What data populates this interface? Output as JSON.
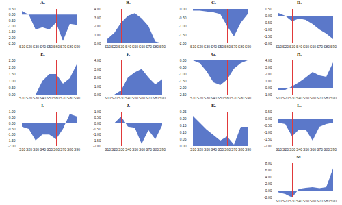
{
  "chart_data": [
    {
      "type": "area",
      "title": "A.",
      "categories": [
        "S10",
        "S20",
        "S30",
        "S40",
        "S50",
        "S60",
        "S70",
        "S80",
        "S90"
      ],
      "values": [
        0.3,
        0,
        -1.3,
        -1.1,
        -1.3,
        -0.7,
        -2.3,
        -0.8,
        -0.9
      ],
      "color": "#5b78c9",
      "ylim": [
        -2.5,
        0.5
      ],
      "yticks": [
        {
          "value": -2.5,
          "label": "-2.50"
        },
        {
          "value": -2,
          "label": "-2.00"
        },
        {
          "value": -1.5,
          "label": "-1.50"
        },
        {
          "value": -1,
          "label": "-1.00"
        },
        {
          "value": -0.5,
          "label": "-0.50"
        },
        {
          "value": 0,
          "label": "0.00"
        },
        {
          "value": 0.5,
          "label": "0.50"
        }
      ],
      "reference_lines": {
        "x": [
          "S30",
          "S60"
        ],
        "color": "#e03a3a"
      }
    },
    {
      "type": "area",
      "title": "B.",
      "categories": [
        "S10",
        "S20",
        "S30",
        "S40",
        "S50",
        "S60",
        "S70",
        "S80",
        "S90"
      ],
      "values": [
        0.5,
        1.2,
        2.4,
        3.2,
        3.5,
        2.9,
        2.0,
        0.2,
        0
      ],
      "color": "#5b78c9",
      "ylim": [
        0,
        4
      ],
      "yticks": [
        {
          "value": 0,
          "label": "0.00"
        },
        {
          "value": 1,
          "label": "1.00"
        },
        {
          "value": 2,
          "label": "2.00"
        },
        {
          "value": 3,
          "label": "3.00"
        },
        {
          "value": 4,
          "label": "4.00"
        }
      ],
      "reference_lines": {
        "x": [
          "S30",
          "S60"
        ],
        "color": "#e03a3a"
      }
    },
    {
      "type": "area",
      "title": "C.",
      "categories": [
        "S10",
        "S20",
        "S30",
        "S40",
        "S50",
        "S60",
        "S70",
        "S80",
        "S90"
      ],
      "values": [
        -0.1,
        -0.1,
        -0.15,
        -0.2,
        -0.3,
        -1.0,
        -1.6,
        -0.8,
        -0.3
      ],
      "color": "#5b78c9",
      "ylim": [
        -2,
        0
      ],
      "yticks": [
        {
          "value": -2,
          "label": "-2.00"
        },
        {
          "value": -1.5,
          "label": "-1.50"
        },
        {
          "value": -1,
          "label": "-1.00"
        },
        {
          "value": -0.5,
          "label": "-0.50"
        },
        {
          "value": 0,
          "label": "0.00"
        }
      ],
      "reference_lines": {
        "x": [
          "S30",
          "S60"
        ],
        "color": "#e03a3a"
      }
    },
    {
      "type": "area",
      "title": "D.",
      "categories": [
        "S10",
        "S20",
        "S30",
        "S40",
        "S50",
        "S60",
        "S70",
        "S80",
        "S90"
      ],
      "values": [
        0.2,
        0,
        -0.4,
        -0.2,
        -0.3,
        -0.6,
        -1.0,
        -1.3,
        -1.7
      ],
      "color": "#5b78c9",
      "ylim": [
        -2,
        0.5
      ],
      "yticks": [
        {
          "value": -2,
          "label": "-2.00"
        },
        {
          "value": -1.5,
          "label": "-1.50"
        },
        {
          "value": -1,
          "label": "-1.00"
        },
        {
          "value": -0.5,
          "label": "-0.50"
        },
        {
          "value": 0,
          "label": "0.00"
        },
        {
          "value": 0.5,
          "label": "0.50"
        }
      ],
      "reference_lines": {
        "x": [
          "S30",
          "S60"
        ],
        "color": "#e03a3a"
      }
    },
    {
      "type": "area",
      "title": "E.",
      "categories": [
        "S10",
        "S20",
        "S30",
        "S40",
        "S50",
        "S60",
        "S70",
        "S80",
        "S90"
      ],
      "values": [
        0,
        0,
        0,
        1.0,
        1.5,
        1.5,
        0.8,
        1.2,
        2.2
      ],
      "color": "#5b78c9",
      "ylim": [
        0,
        2.5
      ],
      "yticks": [
        {
          "value": 0,
          "label": "0.00"
        },
        {
          "value": 0.5,
          "label": "0.50"
        },
        {
          "value": 1,
          "label": "1.00"
        },
        {
          "value": 1.5,
          "label": "1.50"
        },
        {
          "value": 2,
          "label": "2.00"
        },
        {
          "value": 2.5,
          "label": "2.50"
        }
      ],
      "reference_lines": {
        "x": [
          "S30",
          "S60"
        ],
        "color": "#e03a3a"
      }
    },
    {
      "type": "area",
      "title": "F.",
      "categories": [
        "S10",
        "S20",
        "S30",
        "S40",
        "S50",
        "S60",
        "S70",
        "S80",
        "S90"
      ],
      "values": [
        0,
        0,
        0.5,
        2.0,
        2.6,
        3.0,
        2.0,
        1.2,
        1.8
      ],
      "color": "#5b78c9",
      "ylim": [
        0,
        4
      ],
      "yticks": [
        {
          "value": 0,
          "label": "0.00"
        },
        {
          "value": 1,
          "label": "1.00"
        },
        {
          "value": 2,
          "label": "2.00"
        },
        {
          "value": 3,
          "label": "3.00"
        },
        {
          "value": 4,
          "label": "4.00"
        }
      ],
      "reference_lines": {
        "x": [
          "S30",
          "S60"
        ],
        "color": "#e03a3a"
      }
    },
    {
      "type": "area",
      "title": "G.",
      "categories": [
        "S10",
        "S20",
        "S30",
        "S40",
        "S50",
        "S60",
        "S70",
        "S80",
        "S90"
      ],
      "values": [
        0,
        -0.2,
        -0.8,
        -1.6,
        -1.8,
        -1.4,
        -0.6,
        -0.2,
        0
      ],
      "color": "#5b78c9",
      "ylim": [
        -2.5,
        0
      ],
      "yticks": [
        {
          "value": -2.5,
          "label": "-2.50"
        },
        {
          "value": -2,
          "label": "-2.00"
        },
        {
          "value": -1.5,
          "label": "-1.50"
        },
        {
          "value": -1,
          "label": "-1.00"
        },
        {
          "value": -0.5,
          "label": "-0.50"
        },
        {
          "value": 0,
          "label": "0.00"
        }
      ],
      "reference_lines": {
        "x": [
          "S30",
          "S60"
        ],
        "color": "#e03a3a"
      }
    },
    {
      "type": "area",
      "title": "H.",
      "categories": [
        "S10",
        "S20",
        "S30",
        "S40",
        "S50",
        "S60",
        "S70",
        "S80",
        "S90"
      ],
      "values": [
        -0.3,
        -0.3,
        0.2,
        0.8,
        1.5,
        2.3,
        1.8,
        1.6,
        3.7
      ],
      "color": "#5b78c9",
      "ylim": [
        -1,
        4
      ],
      "yticks": [
        {
          "value": -1,
          "label": "-1.00"
        },
        {
          "value": 0,
          "label": "0.00"
        },
        {
          "value": 1,
          "label": "1.00"
        },
        {
          "value": 2,
          "label": "2.00"
        },
        {
          "value": 3,
          "label": "3.00"
        },
        {
          "value": 4,
          "label": "4.00"
        }
      ],
      "reference_lines": {
        "x": [
          "S30",
          "S60"
        ],
        "color": "#e03a3a"
      }
    },
    {
      "type": "area",
      "title": "I.",
      "categories": [
        "S10",
        "S20",
        "S30",
        "S40",
        "S50",
        "S60",
        "S70",
        "S80",
        "S90"
      ],
      "values": [
        -0.3,
        -0.5,
        -1.5,
        -1.0,
        -1.0,
        -1.4,
        -0.5,
        0.8,
        0.6
      ],
      "color": "#5b78c9",
      "ylim": [
        -2,
        1
      ],
      "yticks": [
        {
          "value": -2,
          "label": "-2.00"
        },
        {
          "value": -1.5,
          "label": "-1.50"
        },
        {
          "value": -1,
          "label": "-1.00"
        },
        {
          "value": -0.5,
          "label": "-0.50"
        },
        {
          "value": 0,
          "label": "0.00"
        },
        {
          "value": 0.5,
          "label": "0.50"
        },
        {
          "value": 1,
          "label": "1.00"
        }
      ],
      "reference_lines": {
        "x": [
          "S30",
          "S60"
        ],
        "color": "#e03a3a"
      }
    },
    {
      "type": "area",
      "title": "J.",
      "categories": [
        "S10",
        "S20",
        "S30",
        "S40",
        "S50",
        "S60",
        "S70",
        "S80",
        "S90"
      ],
      "values": [
        0,
        0,
        0.6,
        -0.3,
        -0.4,
        -1.8,
        -0.6,
        -1.4,
        -0.2
      ],
      "color": "#5b78c9",
      "ylim": [
        -2,
        1
      ],
      "yticks": [
        {
          "value": -2,
          "label": "-2.00"
        },
        {
          "value": -1.5,
          "label": "-1.50"
        },
        {
          "value": -1,
          "label": "-1.00"
        },
        {
          "value": -0.5,
          "label": "-0.50"
        },
        {
          "value": 0,
          "label": "0.00"
        },
        {
          "value": 0.5,
          "label": "0.50"
        },
        {
          "value": 1,
          "label": "1.00"
        }
      ],
      "reference_lines": {
        "x": [
          "S30",
          "S60"
        ],
        "color": "#e03a3a"
      }
    },
    {
      "type": "area",
      "title": "K.",
      "categories": [
        "S10",
        "S20",
        "S30",
        "S40",
        "S50",
        "S60",
        "S70",
        "S80",
        "S90"
      ],
      "values": [
        0.22,
        0.17,
        0.12,
        0.08,
        0.04,
        0.07,
        0.01,
        0.14,
        0.14
      ],
      "color": "#5b78c9",
      "ylim": [
        0,
        0.25
      ],
      "yticks": [
        {
          "value": 0,
          "label": "0.00"
        },
        {
          "value": 0.05,
          "label": "0.05"
        },
        {
          "value": 0.1,
          "label": "0.10"
        },
        {
          "value": 0.15,
          "label": "0.15"
        },
        {
          "value": 0.2,
          "label": "0.20"
        },
        {
          "value": 0.25,
          "label": "0.25"
        }
      ],
      "reference_lines": {
        "x": [
          "S30",
          "S60"
        ],
        "color": "#e03a3a"
      }
    },
    {
      "type": "area",
      "title": "L.",
      "categories": [
        "S10",
        "S20",
        "S30",
        "S40",
        "S50",
        "S60",
        "S70",
        "S80",
        "S90"
      ],
      "values": [
        -0.3,
        -0.4,
        -1.3,
        -0.8,
        -0.8,
        -1.6,
        -0.6,
        -0.4,
        -0.3
      ],
      "color": "#5b78c9",
      "ylim": [
        -2,
        0.5
      ],
      "yticks": [
        {
          "value": -2,
          "label": "-2.00"
        },
        {
          "value": -1.5,
          "label": "-1.50"
        },
        {
          "value": -1,
          "label": "-1.00"
        },
        {
          "value": -0.5,
          "label": "-0.50"
        },
        {
          "value": 0,
          "label": "0.00"
        },
        {
          "value": 0.5,
          "label": "0.50"
        }
      ],
      "reference_lines": {
        "x": [
          "S30",
          "S60"
        ],
        "color": "#e03a3a"
      }
    },
    {
      "type": "area",
      "title": "M.",
      "categories": [
        "S10",
        "S20",
        "S30",
        "S40",
        "S50",
        "S60",
        "S70",
        "S80",
        "S90"
      ],
      "values": [
        -0.5,
        -1.0,
        -2.0,
        0.5,
        0.8,
        1.0,
        0.7,
        1.0,
        6.5
      ],
      "color": "#5b78c9",
      "ylim": [
        -2,
        8
      ],
      "yticks": [
        {
          "value": -2,
          "label": "-2.00"
        },
        {
          "value": 0,
          "label": "0.00"
        },
        {
          "value": 2,
          "label": "2.00"
        },
        {
          "value": 4,
          "label": "4.00"
        },
        {
          "value": 6,
          "label": "6.00"
        },
        {
          "value": 8,
          "label": "8.00"
        }
      ],
      "reference_lines": {
        "x": [
          "S30",
          "S60"
        ],
        "color": "#e03a3a"
      }
    }
  ]
}
